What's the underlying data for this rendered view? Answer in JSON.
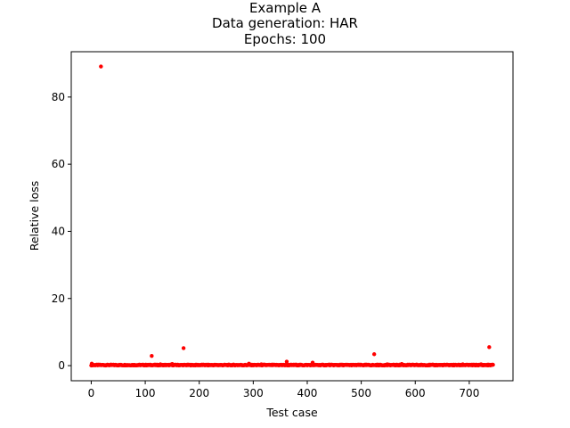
{
  "chart_data": {
    "type": "scatter",
    "title_lines": [
      "Example A",
      "Data generation: HAR",
      "Epochs: 100"
    ],
    "xlabel": "Test case",
    "ylabel": "Relative loss",
    "xlim": [
      -37,
      781
    ],
    "ylim": [
      -4.5,
      93.5
    ],
    "xticks": [
      0,
      100,
      200,
      300,
      400,
      500,
      600,
      700
    ],
    "yticks": [
      0,
      20,
      40,
      60,
      80
    ],
    "marker_color": "#ff0000",
    "grid": false,
    "n_points": 745,
    "baseline_value": 0.05,
    "outliers": [
      {
        "x": 1,
        "y": 0.6
      },
      {
        "x": 18,
        "y": 89.1
      },
      {
        "x": 112,
        "y": 2.9
      },
      {
        "x": 128,
        "y": 0.4
      },
      {
        "x": 150,
        "y": 0.5
      },
      {
        "x": 171,
        "y": 5.2
      },
      {
        "x": 205,
        "y": 0.3
      },
      {
        "x": 292,
        "y": 0.6
      },
      {
        "x": 315,
        "y": 0.4
      },
      {
        "x": 362,
        "y": 1.2
      },
      {
        "x": 378,
        "y": 0.3
      },
      {
        "x": 410,
        "y": 0.9
      },
      {
        "x": 440,
        "y": 0.3
      },
      {
        "x": 489,
        "y": 0.2
      },
      {
        "x": 524,
        "y": 3.4
      },
      {
        "x": 548,
        "y": 0.4
      },
      {
        "x": 575,
        "y": 0.5
      },
      {
        "x": 602,
        "y": 0.3
      },
      {
        "x": 642,
        "y": 0.2
      },
      {
        "x": 688,
        "y": 0.4
      },
      {
        "x": 722,
        "y": 0.4
      },
      {
        "x": 737,
        "y": 5.5
      }
    ]
  }
}
